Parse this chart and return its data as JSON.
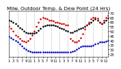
{
  "title": "Milw. Outdoor Temp. & Dew Point (24 Hrs)",
  "bg_color": "#ffffff",
  "plot_bg": "#ffffff",
  "grid_color": "#aaaaaa",
  "ylim": [
    22,
    72
  ],
  "xlim": [
    0,
    47
  ],
  "yticks": [
    25,
    30,
    35,
    40,
    45,
    50,
    55,
    60,
    65,
    70
  ],
  "xtick_positions": [
    0,
    2,
    4,
    6,
    8,
    10,
    12,
    14,
    16,
    18,
    20,
    22,
    24,
    26,
    28,
    30,
    32,
    34,
    36,
    38,
    40,
    42,
    44,
    46
  ],
  "xtick_labels": [
    "1",
    "3",
    "5",
    "7",
    "9",
    "11",
    "1",
    "3",
    "5",
    "7",
    "9",
    "11",
    "1",
    "3",
    "5",
    "7",
    "9",
    "11",
    "1",
    "3",
    "5",
    "7",
    "9",
    "11"
  ],
  "vgrid_positions": [
    4,
    8,
    12,
    16,
    20,
    24,
    28,
    32,
    36,
    40,
    44
  ],
  "temp_x": [
    0,
    1,
    2,
    3,
    4,
    5,
    6,
    7,
    8,
    9,
    10,
    11,
    12,
    13,
    14,
    15,
    16,
    17,
    18,
    19,
    20,
    21,
    22,
    23,
    24,
    25,
    26,
    27,
    28,
    29,
    30,
    31,
    32,
    33,
    34,
    35,
    36,
    37,
    38,
    39,
    40,
    41,
    42,
    43,
    44,
    45,
    46,
    47
  ],
  "temp_y": [
    55,
    53,
    50,
    46,
    44,
    42,
    40,
    39,
    38,
    40,
    42,
    46,
    50,
    55,
    60,
    63,
    65,
    64,
    63,
    62,
    62,
    61,
    60,
    60,
    59,
    58,
    58,
    57,
    57,
    42,
    40,
    38,
    38,
    40,
    43,
    47,
    52,
    57,
    60,
    63,
    65,
    65,
    64,
    60,
    58,
    62,
    65,
    67
  ],
  "dew_x": [
    0,
    1,
    2,
    3,
    4,
    5,
    6,
    7,
    8,
    9,
    10,
    11,
    12,
    13,
    14,
    15,
    16,
    17,
    18,
    19,
    20,
    21,
    22,
    23,
    24,
    25,
    26,
    27,
    28,
    29,
    30,
    31,
    32,
    33,
    34,
    35,
    36,
    37,
    38,
    39,
    40,
    41,
    42,
    43,
    44,
    45,
    46,
    47
  ],
  "dew_y": [
    44,
    43,
    41,
    40,
    38,
    36,
    34,
    32,
    30,
    29,
    28,
    27,
    27,
    27,
    27,
    27,
    27,
    27,
    27,
    27,
    27,
    27,
    27,
    27,
    27,
    27,
    27,
    27,
    27,
    27,
    28,
    29,
    30,
    32,
    33,
    34,
    34,
    34,
    34,
    34,
    35,
    36,
    37,
    38,
    38,
    38,
    39,
    40
  ],
  "black_x": [
    0,
    1,
    2,
    3,
    4,
    5,
    6,
    7,
    8,
    9,
    10,
    11,
    12,
    13,
    14,
    15,
    16,
    17,
    18,
    19,
    20,
    21,
    22,
    23,
    24,
    25,
    26,
    27,
    28,
    29,
    30,
    31,
    32,
    33,
    34,
    35,
    36,
    37,
    38,
    39,
    40,
    41,
    42,
    43,
    44,
    45,
    46,
    47
  ],
  "black_y": [
    62,
    61,
    60,
    58,
    56,
    54,
    52,
    50,
    49,
    48,
    48,
    48,
    48,
    49,
    51,
    53,
    55,
    56,
    57,
    57,
    57,
    57,
    56,
    55,
    54,
    53,
    52,
    51,
    50,
    49,
    49,
    50,
    51,
    52,
    53,
    54,
    55,
    57,
    58,
    60,
    62,
    63,
    62,
    60,
    58,
    60,
    62,
    64
  ],
  "temp_color": "#cc0000",
  "dew_color": "#0000cc",
  "black_color": "#000000",
  "title_color": "#000000",
  "title_fontsize": 5.2,
  "tick_fontsize": 3.8,
  "marker_size": 1.8
}
